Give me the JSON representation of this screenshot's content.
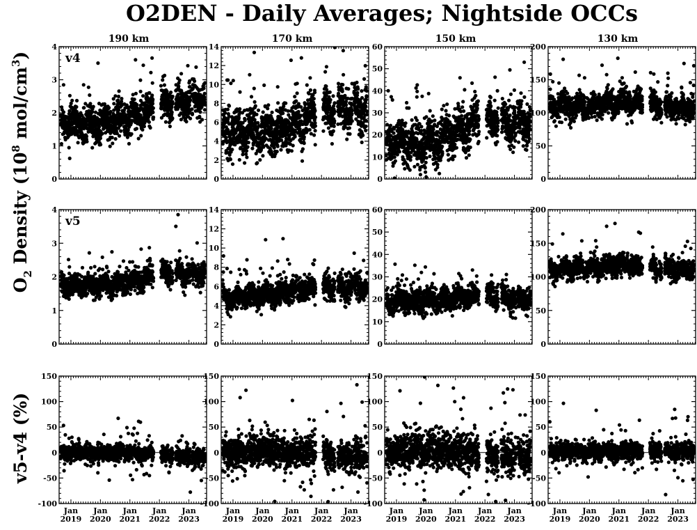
{
  "title": "O2DEN - Daily Averages; Nightside OCCs",
  "ylabel_density": {
    "main": "O",
    "sub": "2",
    "mid": " Density (10",
    "sup1": "8",
    "rest": " mol/cm",
    "sup2": "3",
    "close": ")"
  },
  "ylabel_diff": "v5-v4 (%)",
  "columns": [
    "190 km",
    "170 km",
    "150 km",
    "130 km"
  ],
  "rows": [
    "v4",
    "v5",
    ""
  ],
  "x_ticks": [
    {
      "top": "Jan",
      "bottom": "2019",
      "year": 2019.0
    },
    {
      "top": "Jan",
      "bottom": "2020",
      "year": 2020.0
    },
    {
      "top": "Jan",
      "bottom": "2021",
      "year": 2021.0
    },
    {
      "top": "Jan",
      "bottom": "2022",
      "year": 2022.0
    },
    {
      "top": "Jan",
      "bottom": "2023",
      "year": 2023.0
    }
  ],
  "chart_data": [
    {
      "type": "scatter",
      "panel": "v4 190 km",
      "xlim": [
        2018.6,
        2023.6
      ],
      "ylim": [
        0,
        4
      ],
      "yticks": [
        0,
        1,
        2,
        3,
        4
      ],
      "values_from_screenshot": "dense daily points; 2019 ~1.7, late 2021 up to ~3.7, 2022-2023 ~2.2 rising to ~3.5",
      "y_center_by_year": [
        [
          2019,
          1.7
        ],
        [
          2020,
          1.65
        ],
        [
          2021,
          1.85
        ],
        [
          2022,
          2.2
        ],
        [
          2023,
          2.4
        ]
      ],
      "spread": 0.45
    },
    {
      "type": "scatter",
      "panel": "v4 170 km",
      "xlim": [
        2018.6,
        2023.6
      ],
      "ylim": [
        0,
        14
      ],
      "yticks": [
        0,
        2,
        4,
        6,
        8,
        10,
        12,
        14
      ],
      "y_center_by_year": [
        [
          2019,
          5.0
        ],
        [
          2020,
          4.8
        ],
        [
          2021,
          5.6
        ],
        [
          2022,
          7.0
        ],
        [
          2023,
          7.5
        ]
      ],
      "spread": 2.0
    },
    {
      "type": "scatter",
      "panel": "v4 150 km",
      "xlim": [
        2018.6,
        2023.6
      ],
      "ylim": [
        0,
        60
      ],
      "yticks": [
        0,
        10,
        20,
        30,
        40,
        50,
        60
      ],
      "y_center_by_year": [
        [
          2019,
          17
        ],
        [
          2020,
          16
        ],
        [
          2021,
          21
        ],
        [
          2022,
          27
        ],
        [
          2023,
          25
        ]
      ],
      "spread": 8
    },
    {
      "type": "scatter",
      "panel": "v4 130 km",
      "xlim": [
        2018.6,
        2023.6
      ],
      "ylim": [
        0,
        200
      ],
      "yticks": [
        0,
        50,
        100,
        150,
        200
      ],
      "y_center_by_year": [
        [
          2019,
          110
        ],
        [
          2020,
          110
        ],
        [
          2021,
          118
        ],
        [
          2022,
          112
        ],
        [
          2023,
          108
        ]
      ],
      "spread": 16
    },
    {
      "type": "scatter",
      "panel": "v5 190 km",
      "xlim": [
        2018.6,
        2023.6
      ],
      "ylim": [
        0,
        4
      ],
      "yticks": [
        0,
        1,
        2,
        3,
        4
      ],
      "y_center_by_year": [
        [
          2019,
          1.75
        ],
        [
          2020,
          1.75
        ],
        [
          2021,
          1.8
        ],
        [
          2022,
          2.1
        ],
        [
          2023,
          2.1
        ]
      ],
      "spread": 0.3
    },
    {
      "type": "scatter",
      "panel": "v5 170 km",
      "xlim": [
        2018.6,
        2023.6
      ],
      "ylim": [
        0,
        14
      ],
      "yticks": [
        0,
        2,
        4,
        6,
        8,
        10,
        12,
        14
      ],
      "y_center_by_year": [
        [
          2019,
          4.8
        ],
        [
          2020,
          5.0
        ],
        [
          2021,
          5.4
        ],
        [
          2022,
          5.9
        ],
        [
          2023,
          5.9
        ]
      ],
      "spread": 1.1
    },
    {
      "type": "scatter",
      "panel": "v5 150 km",
      "xlim": [
        2018.6,
        2023.6
      ],
      "ylim": [
        0,
        60
      ],
      "yticks": [
        0,
        10,
        20,
        30,
        40,
        50,
        60
      ],
      "y_center_by_year": [
        [
          2019,
          19
        ],
        [
          2020,
          19
        ],
        [
          2021,
          20
        ],
        [
          2022,
          22
        ],
        [
          2023,
          20
        ]
      ],
      "spread": 4.5
    },
    {
      "type": "scatter",
      "panel": "v5 130 km",
      "xlim": [
        2018.6,
        2023.6
      ],
      "ylim": [
        0,
        200
      ],
      "yticks": [
        0,
        50,
        100,
        150,
        200
      ],
      "y_center_by_year": [
        [
          2019,
          110
        ],
        [
          2020,
          112
        ],
        [
          2021,
          118
        ],
        [
          2022,
          113
        ],
        [
          2023,
          110
        ]
      ],
      "spread": 13
    },
    {
      "type": "scatter",
      "panel": "v5-v4 190 km",
      "xlim": [
        2018.6,
        2023.6
      ],
      "ylim": [
        -100,
        150
      ],
      "yticks": [
        -100,
        -50,
        0,
        50,
        100,
        150
      ],
      "zero_line": true,
      "y_center_by_year": [
        [
          2019,
          0
        ],
        [
          2020,
          0
        ],
        [
          2021,
          0
        ],
        [
          2022,
          -5
        ],
        [
          2023,
          -8
        ]
      ],
      "spread": 12
    },
    {
      "type": "scatter",
      "panel": "v5-v4 170 km",
      "xlim": [
        2018.6,
        2023.6
      ],
      "ylim": [
        -100,
        150
      ],
      "yticks": [
        -100,
        -50,
        0,
        50,
        100,
        150
      ],
      "zero_line": true,
      "y_center_by_year": [
        [
          2019,
          0
        ],
        [
          2020,
          5
        ],
        [
          2021,
          2
        ],
        [
          2022,
          -5
        ],
        [
          2023,
          -8
        ]
      ],
      "spread": 24
    },
    {
      "type": "scatter",
      "panel": "v5-v4 150 km",
      "xlim": [
        2018.6,
        2023.6
      ],
      "ylim": [
        -100,
        150
      ],
      "yticks": [
        -100,
        -50,
        0,
        50,
        100,
        150
      ],
      "zero_line": true,
      "y_center_by_year": [
        [
          2019,
          2
        ],
        [
          2020,
          8
        ],
        [
          2021,
          3
        ],
        [
          2022,
          -5
        ],
        [
          2023,
          -8
        ]
      ],
      "spread": 30
    },
    {
      "type": "scatter",
      "panel": "v5-v4 130 km",
      "xlim": [
        2018.6,
        2023.6
      ],
      "ylim": [
        -100,
        150
      ],
      "yticks": [
        -100,
        -50,
        0,
        50,
        100,
        150
      ],
      "zero_line": true,
      "y_center_by_year": [
        [
          2019,
          2
        ],
        [
          2020,
          3
        ],
        [
          2021,
          2
        ],
        [
          2022,
          3
        ],
        [
          2023,
          2
        ]
      ],
      "spread": 14
    }
  ],
  "colors": {
    "points": "#000000",
    "axes": "#000000",
    "background": "#ffffff"
  }
}
